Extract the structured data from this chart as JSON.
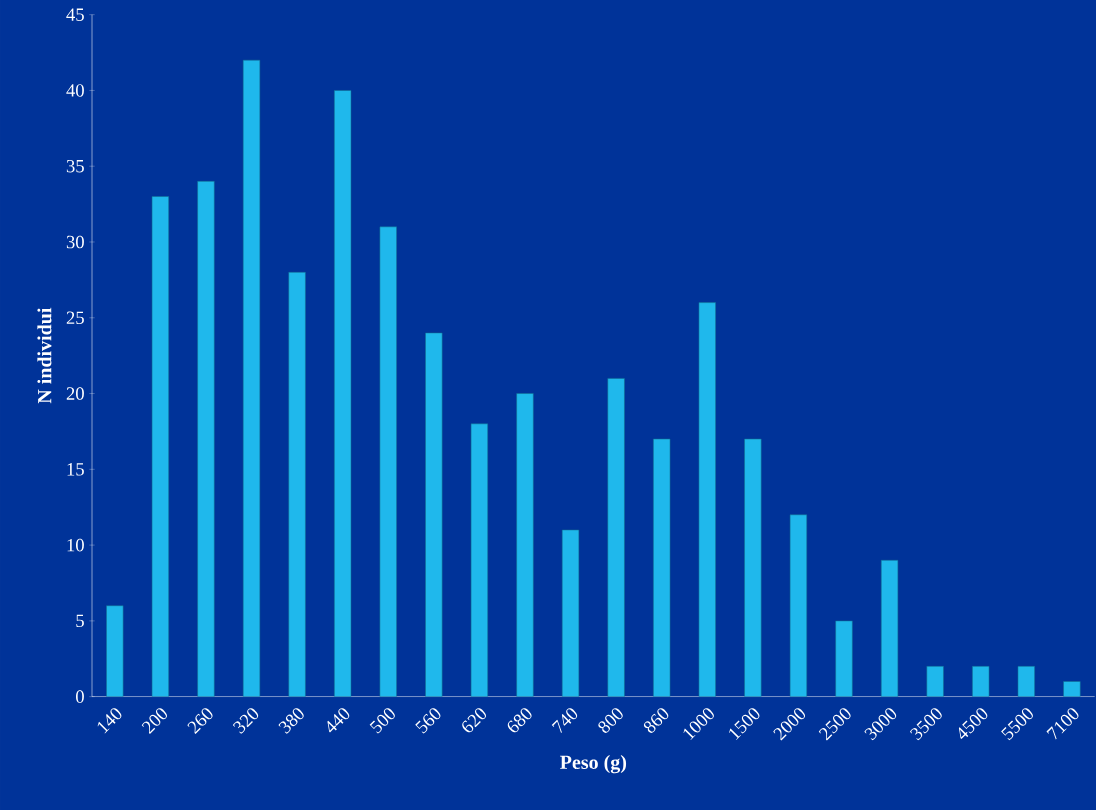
{
  "chart_data": {
    "type": "bar",
    "xlabel": "Peso (g)",
    "ylabel": "N  individui",
    "categories": [
      "140",
      "200",
      "260",
      "320",
      "380",
      "440",
      "500",
      "560",
      "620",
      "680",
      "740",
      "800",
      "860",
      "1000",
      "1500",
      "2000",
      "2500",
      "3000",
      "3500",
      "4500",
      "5500",
      "7100"
    ],
    "values": [
      6,
      33,
      34,
      42,
      28,
      40,
      31,
      24,
      18,
      20,
      11,
      21,
      17,
      26,
      17,
      12,
      5,
      9,
      2,
      2,
      2,
      1
    ],
    "color": "#1fb8ec",
    "ylim": [
      0,
      45
    ],
    "yticks": [
      0,
      5,
      10,
      15,
      20,
      25,
      30,
      35,
      40,
      45
    ],
    "grid": false
  }
}
